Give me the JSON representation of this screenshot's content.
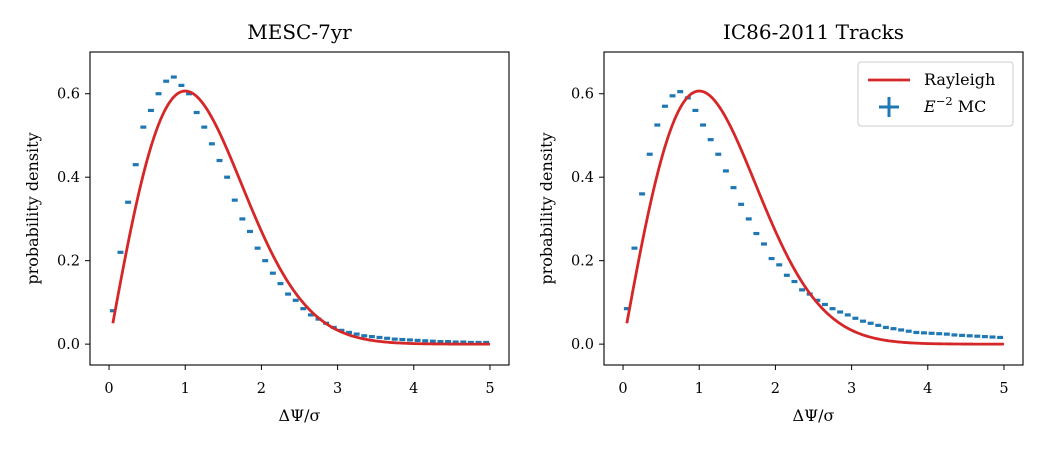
{
  "chart_data": [
    {
      "type": "scatter",
      "title": "MESC-7yr",
      "xlabel": "ΔΨ/σ",
      "ylabel": "probability density",
      "xlim": [
        -0.25,
        5.25
      ],
      "ylim": [
        -0.05,
        0.7
      ],
      "xticks": [
        0,
        1,
        2,
        3,
        4,
        5
      ],
      "yticks": [
        0.0,
        0.2,
        0.4,
        0.6
      ],
      "xtick_labels": [
        "0",
        "1",
        "2",
        "3",
        "4",
        "5"
      ],
      "ytick_labels": [
        "0.0",
        "0.2",
        "0.4",
        "0.6"
      ],
      "legend": null,
      "series": [
        {
          "name": "Rayleigh",
          "kind": "line",
          "color": "#d62728",
          "formula": "x*exp(-x^2/2)",
          "x_range": [
            0.05,
            5.0
          ]
        },
        {
          "name": "E^-2 MC",
          "kind": "errorbar",
          "color": "#1f77b4",
          "bin_width": 0.1,
          "x": [
            0.05,
            0.15,
            0.25,
            0.35,
            0.45,
            0.55,
            0.65,
            0.75,
            0.85,
            0.95,
            1.05,
            1.15,
            1.25,
            1.35,
            1.45,
            1.55,
            1.65,
            1.75,
            1.85,
            1.95,
            2.05,
            2.15,
            2.25,
            2.35,
            2.45,
            2.55,
            2.65,
            2.75,
            2.85,
            2.95,
            3.05,
            3.15,
            3.25,
            3.35,
            3.45,
            3.55,
            3.65,
            3.75,
            3.85,
            3.95,
            4.05,
            4.15,
            4.25,
            4.35,
            4.45,
            4.55,
            4.65,
            4.75,
            4.85,
            4.95
          ],
          "y": [
            0.08,
            0.22,
            0.34,
            0.43,
            0.52,
            0.56,
            0.6,
            0.63,
            0.64,
            0.62,
            0.6,
            0.555,
            0.52,
            0.48,
            0.44,
            0.4,
            0.345,
            0.3,
            0.27,
            0.23,
            0.2,
            0.17,
            0.145,
            0.12,
            0.105,
            0.085,
            0.07,
            0.06,
            0.05,
            0.04,
            0.033,
            0.028,
            0.024,
            0.02,
            0.018,
            0.016,
            0.014,
            0.012,
            0.011,
            0.01,
            0.009,
            0.008,
            0.007,
            0.006,
            0.006,
            0.005,
            0.005,
            0.004,
            0.004,
            0.004
          ]
        }
      ]
    },
    {
      "type": "scatter",
      "title": "IC86-2011 Tracks",
      "xlabel": "ΔΨ/σ",
      "ylabel": "probability density",
      "xlim": [
        -0.25,
        5.25
      ],
      "ylim": [
        -0.05,
        0.7
      ],
      "xticks": [
        0,
        1,
        2,
        3,
        4,
        5
      ],
      "yticks": [
        0.0,
        0.2,
        0.4,
        0.6
      ],
      "xtick_labels": [
        "0",
        "1",
        "2",
        "3",
        "4",
        "5"
      ],
      "ytick_labels": [
        "0.0",
        "0.2",
        "0.4",
        "0.6"
      ],
      "legend": {
        "position": "top-right",
        "entries": [
          {
            "label": "Rayleigh",
            "kind": "line"
          },
          {
            "label": "E−2 MC",
            "kind": "errorbar",
            "label_base": "E",
            "label_sup": "−2",
            "label_tail": "MC"
          }
        ]
      },
      "series": [
        {
          "name": "Rayleigh",
          "kind": "line",
          "color": "#d62728",
          "formula": "x*exp(-x^2/2)",
          "x_range": [
            0.05,
            5.0
          ]
        },
        {
          "name": "E^-2 MC",
          "kind": "errorbar",
          "color": "#1f77b4",
          "bin_width": 0.1,
          "x": [
            0.05,
            0.15,
            0.25,
            0.35,
            0.45,
            0.55,
            0.65,
            0.75,
            0.85,
            0.95,
            1.05,
            1.15,
            1.25,
            1.35,
            1.45,
            1.55,
            1.65,
            1.75,
            1.85,
            1.95,
            2.05,
            2.15,
            2.25,
            2.35,
            2.45,
            2.55,
            2.65,
            2.75,
            2.85,
            2.95,
            3.05,
            3.15,
            3.25,
            3.35,
            3.45,
            3.55,
            3.65,
            3.75,
            3.85,
            3.95,
            4.05,
            4.15,
            4.25,
            4.35,
            4.45,
            4.55,
            4.65,
            4.75,
            4.85,
            4.95
          ],
          "y": [
            0.085,
            0.23,
            0.36,
            0.455,
            0.525,
            0.57,
            0.595,
            0.605,
            0.59,
            0.56,
            0.525,
            0.49,
            0.455,
            0.415,
            0.375,
            0.335,
            0.3,
            0.265,
            0.24,
            0.205,
            0.19,
            0.165,
            0.15,
            0.13,
            0.12,
            0.105,
            0.095,
            0.085,
            0.077,
            0.07,
            0.062,
            0.055,
            0.05,
            0.045,
            0.04,
            0.037,
            0.034,
            0.031,
            0.028,
            0.027,
            0.026,
            0.025,
            0.024,
            0.022,
            0.021,
            0.02,
            0.019,
            0.018,
            0.017,
            0.016
          ]
        }
      ]
    }
  ]
}
